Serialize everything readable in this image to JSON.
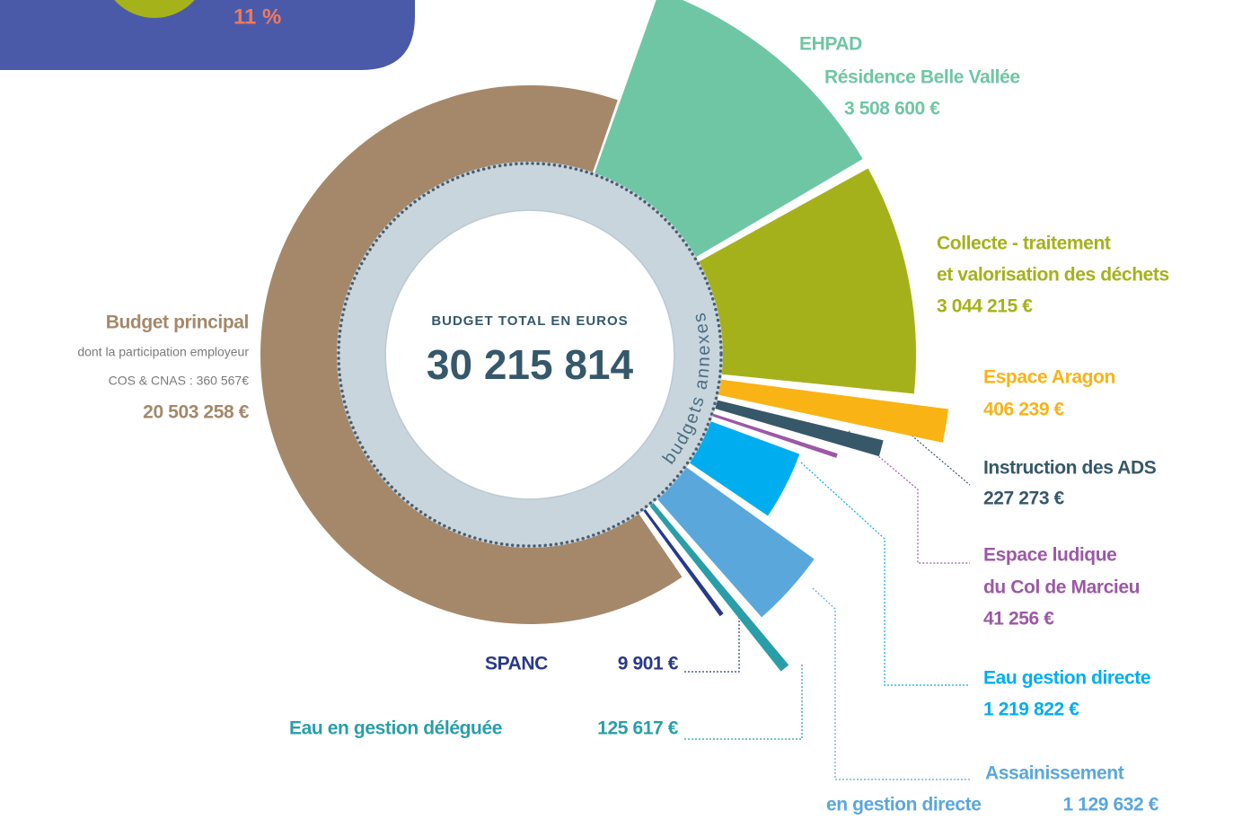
{
  "fragment_label": "11 %",
  "chart_data": {
    "type": "radial",
    "title": "BUDGET TOTAL EN EUROS",
    "total": 30215814,
    "total_label": "30 215 814",
    "ring_label": "budgets annexes",
    "main": {
      "name": "Budget principal",
      "notes": [
        "dont la participation employeur",
        "COS & CNAS : 360 567€"
      ],
      "value": 20503258,
      "value_label": "20 503 258 €",
      "color": "#a5886a"
    },
    "series": [
      {
        "name": [
          "EHPAD",
          "Résidence Belle Vallée"
        ],
        "value": 3508600,
        "value_label": "3 508 600 €",
        "color": "#6fc6a5"
      },
      {
        "name": [
          "Collecte - traitement",
          "et valorisation des déchets"
        ],
        "value": 3044215,
        "value_label": "3 044 215 €",
        "color": "#a5b11a"
      },
      {
        "name": [
          "Espace Aragon"
        ],
        "value": 406239,
        "value_label": "406 239 €",
        "color": "#f9b315"
      },
      {
        "name": [
          "Instruction des ADS"
        ],
        "value": 227273,
        "value_label": "227 273 €",
        "color": "#365868"
      },
      {
        "name": [
          "Espace ludique",
          "du Col de Marcieu"
        ],
        "value": 41256,
        "value_label": "41 256 €",
        "color": "#9b59a5"
      },
      {
        "name": [
          "Eau gestion directe"
        ],
        "value": 1219822,
        "value_label": "1 219 822 €",
        "color": "#00aeef"
      },
      {
        "name": [
          "Assainissement",
          "en gestion directe"
        ],
        "value": 1129632,
        "value_label": "1 129 632 €",
        "color": "#5aa7dc"
      },
      {
        "name": [
          "Eau en gestion déléguée"
        ],
        "value": 125617,
        "value_label": "125 617 €",
        "color": "#2a9ea8"
      },
      {
        "name": [
          "SPANC"
        ],
        "value": 9901,
        "value_label": "9 901 €",
        "color": "#27398a"
      }
    ]
  }
}
